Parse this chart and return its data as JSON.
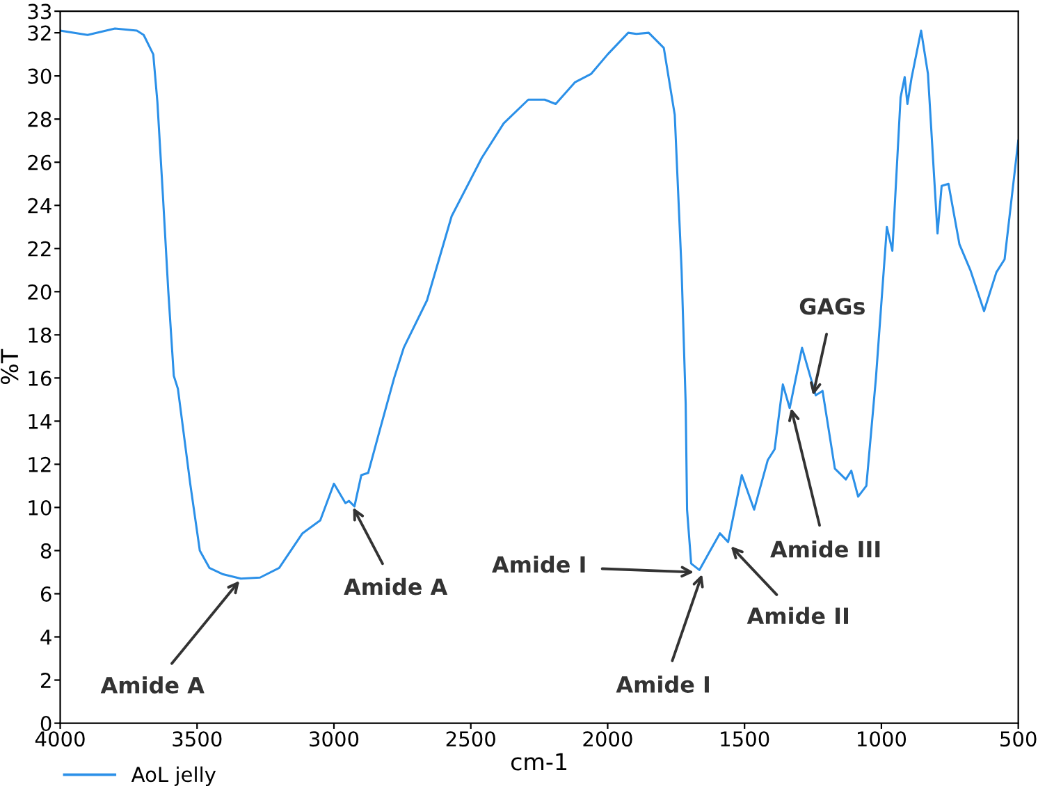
{
  "chart_data": {
    "type": "line",
    "xlabel": "cm-1",
    "ylabel": "%T",
    "xlim": [
      4000,
      500
    ],
    "ylim": [
      0,
      33
    ],
    "xticks": [
      4000,
      3500,
      3000,
      2500,
      2000,
      1500,
      1000,
      500
    ],
    "yticks": [
      0,
      2,
      4,
      6,
      8,
      10,
      12,
      14,
      16,
      18,
      20,
      22,
      24,
      26,
      28,
      30,
      32,
      33
    ],
    "grid": false,
    "legend": "bottom left",
    "marker": "none",
    "line_style": "solid",
    "series": [
      {
        "name": "AoL jelly",
        "color": "#2b90e8",
        "x": [
          4000,
          3900,
          3800,
          3720,
          3695,
          3660,
          3645,
          3625,
          3605,
          3585,
          3570,
          3525,
          3490,
          3455,
          3405,
          3340,
          3270,
          3200,
          3115,
          3050,
          3000,
          2958,
          2945,
          2925,
          2900,
          2875,
          2830,
          2780,
          2745,
          2660,
          2570,
          2460,
          2380,
          2290,
          2230,
          2190,
          2120,
          2060,
          2000,
          1925,
          1895,
          1850,
          1795,
          1755,
          1730,
          1715,
          1710,
          1695,
          1665,
          1590,
          1560,
          1510,
          1465,
          1415,
          1390,
          1360,
          1335,
          1290,
          1240,
          1215,
          1170,
          1130,
          1110,
          1085,
          1055,
          1020,
          980,
          960,
          930,
          915,
          905,
          890,
          855,
          830,
          795,
          780,
          755,
          715,
          675,
          625,
          580,
          550,
          500
        ],
        "values": [
          32.1,
          31.9,
          32.2,
          32.1,
          31.9,
          31.0,
          28.8,
          24.5,
          20.0,
          16.1,
          15.5,
          11.1,
          8.0,
          7.2,
          6.9,
          6.7,
          6.75,
          7.2,
          8.8,
          9.4,
          11.1,
          10.2,
          10.3,
          10.05,
          11.5,
          11.6,
          13.7,
          16.0,
          17.4,
          19.6,
          23.5,
          26.2,
          27.8,
          28.9,
          28.9,
          28.7,
          29.7,
          30.1,
          31.0,
          32.0,
          31.95,
          32.0,
          31.3,
          28.2,
          21.0,
          14.8,
          9.9,
          7.4,
          7.1,
          8.8,
          8.4,
          11.5,
          9.9,
          12.2,
          12.7,
          15.7,
          14.6,
          17.4,
          15.2,
          15.4,
          11.8,
          11.3,
          11.7,
          10.5,
          11.0,
          16.0,
          23.0,
          21.9,
          29.0,
          29.95,
          28.7,
          29.9,
          32.1,
          30.1,
          22.7,
          24.9,
          25.0,
          22.2,
          21.0,
          19.1,
          20.9,
          21.5,
          27.0
        ]
      }
    ],
    "annotations": [
      {
        "text": "Amide A",
        "x": 3345,
        "y": 6.6
      },
      {
        "text": "Amide A",
        "x": 2930,
        "y": 10.0
      },
      {
        "text": "Amide I",
        "x": 1685,
        "y": 7.0
      },
      {
        "text": "Amide I",
        "x": 1655,
        "y": 6.9
      },
      {
        "text": "Amide II",
        "x": 1550,
        "y": 8.2
      },
      {
        "text": "Amide III",
        "x": 1330,
        "y": 14.6
      },
      {
        "text": "GAGs",
        "x": 1250,
        "y": 15.2
      }
    ]
  }
}
